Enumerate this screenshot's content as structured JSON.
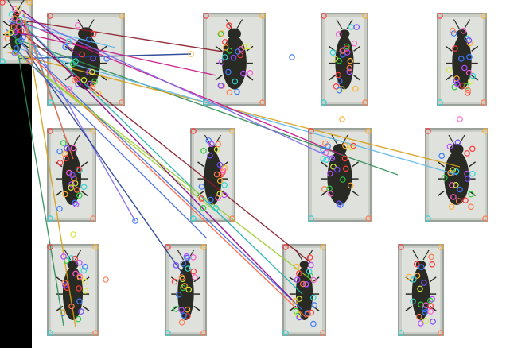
{
  "image": {
    "description_free": true,
    "background_color": "#ffffff",
    "panel_fill": "#c9cdc6",
    "panel_border": "#9aa09a",
    "beetle_color": "#2a2a24",
    "keypoint_colors": [
      "#ff3b3b",
      "#3b7bff",
      "#27c93f",
      "#ffb02e",
      "#b84dff",
      "#ff5fd0",
      "#2fd5d5",
      "#d4e83a",
      "#7a4bff",
      "#ff7f50"
    ],
    "match_line_colors": [
      "#8b1a2b",
      "#1f3b8f",
      "#2e8b57",
      "#d4a017",
      "#5fb8e8",
      "#c71585",
      "#20b2aa",
      "#7b68ee",
      "#9acd32",
      "#ff6347",
      "#4169e1",
      "#8b008b"
    ]
  }
}
